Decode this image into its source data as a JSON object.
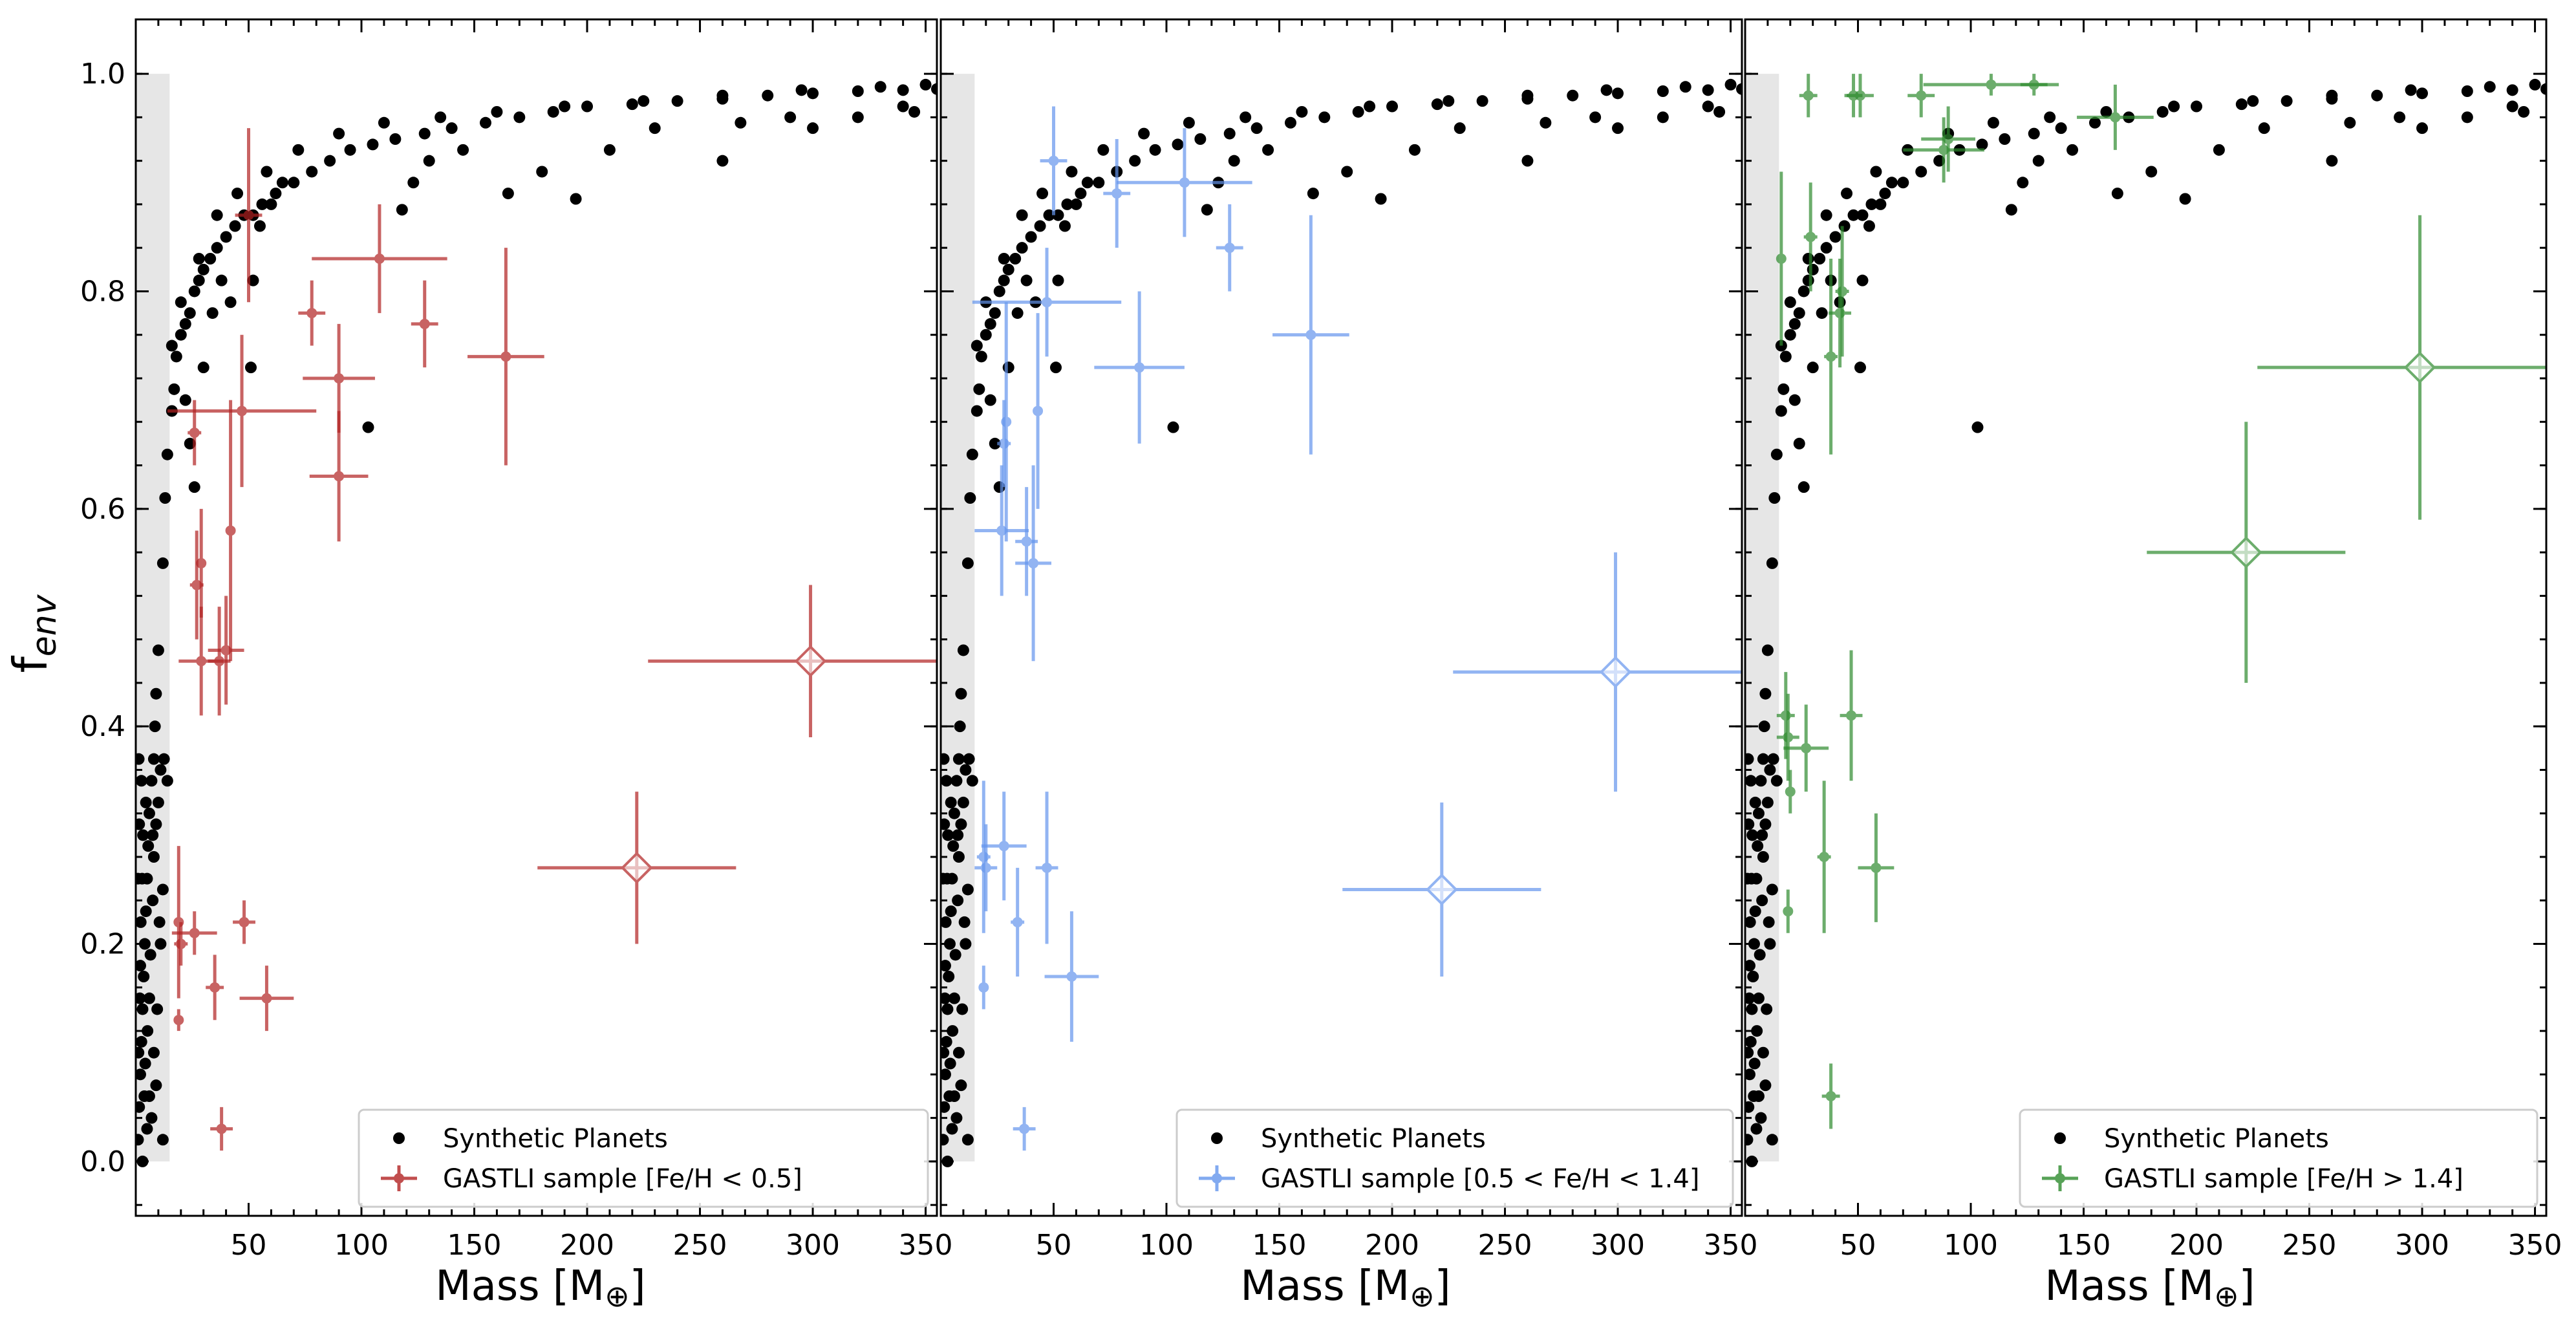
{
  "figure": {
    "ylabel_main": "f",
    "ylabel_sub": "env",
    "xlabel_main": "Mass [M",
    "xlabel_sub": "⊕",
    "xlabel_close": "]"
  },
  "chart_data": [
    {
      "type": "scatter",
      "panel": "left",
      "xlim": [
        0,
        355
      ],
      "ylim": [
        -0.05,
        1.05
      ],
      "xticks": [
        50,
        100,
        150,
        200,
        250,
        300,
        350
      ],
      "yticks": [
        0.0,
        0.2,
        0.4,
        0.6,
        0.8,
        1.0
      ],
      "xtick_labels": [
        "50",
        "100",
        "150",
        "200",
        "250",
        "300",
        "350"
      ],
      "ytick_labels": [
        "0.0",
        "0.2",
        "0.4",
        "0.6",
        "0.8",
        "1.0"
      ],
      "show_yticklabels": true,
      "shaded_band": [
        0,
        15
      ],
      "color": "#b22222",
      "legend": [
        "Synthetic Planets",
        "GASTLI sample [Fe/H < 0.5]"
      ],
      "legend_position": "lower-right",
      "points": [
        {
          "x": 50,
          "y": 0.87,
          "xerr": 6,
          "yerr": 0.08
        },
        {
          "x": 108,
          "y": 0.83,
          "xerr": 30,
          "yerr": 0.05
        },
        {
          "x": 78,
          "y": 0.78,
          "xerr": 6,
          "yerr": 0.03
        },
        {
          "x": 128,
          "y": 0.77,
          "xerr": 6,
          "yerr": 0.04
        },
        {
          "x": 164,
          "y": 0.74,
          "xerr": 17,
          "yerr": 0.1
        },
        {
          "x": 90,
          "y": 0.72,
          "xerr": 16,
          "yerr": 0.05
        },
        {
          "x": 47,
          "y": 0.69,
          "xerr": 33,
          "yerr": 0.07
        },
        {
          "x": 26,
          "y": 0.67,
          "xerr": 3,
          "yerr": 0.03
        },
        {
          "x": 90,
          "y": 0.63,
          "xerr": 13,
          "yerr": 0.06
        },
        {
          "x": 42,
          "y": 0.58,
          "xerr": 2,
          "yerr": 0.12
        },
        {
          "x": 29,
          "y": 0.55,
          "xerr": 2,
          "yerr": 0.05
        },
        {
          "x": 27,
          "y": 0.53,
          "xerr": 3,
          "yerr": 0.05
        },
        {
          "x": 40,
          "y": 0.47,
          "xerr": 8,
          "yerr": 0.05
        },
        {
          "x": 29,
          "y": 0.46,
          "xerr": 10,
          "yerr": 0.05
        },
        {
          "x": 37,
          "y": 0.46,
          "xerr": 5,
          "yerr": 0.05
        },
        {
          "x": 19,
          "y": 0.22,
          "xerr": 2,
          "yerr": 0.07
        },
        {
          "x": 48,
          "y": 0.22,
          "xerr": 5,
          "yerr": 0.02
        },
        {
          "x": 26,
          "y": 0.21,
          "xerr": 10,
          "yerr": 0.02
        },
        {
          "x": 20,
          "y": 0.2,
          "xerr": 3,
          "yerr": 0.02
        },
        {
          "x": 35,
          "y": 0.16,
          "xerr": 4,
          "yerr": 0.03
        },
        {
          "x": 58,
          "y": 0.15,
          "xerr": 12,
          "yerr": 0.03
        },
        {
          "x": 19,
          "y": 0.13,
          "xerr": 2,
          "yerr": 0.01
        },
        {
          "x": 38,
          "y": 0.03,
          "xerr": 5,
          "yerr": 0.02
        }
      ],
      "big_points": [
        {
          "x": 299,
          "y": 0.46,
          "xerr": 72,
          "yerr": 0.07
        },
        {
          "x": 222,
          "y": 0.27,
          "xerr": 44,
          "yerr": 0.07
        }
      ]
    },
    {
      "type": "scatter",
      "panel": "middle",
      "xlim": [
        0,
        355
      ],
      "ylim": [
        -0.05,
        1.05
      ],
      "xticks": [
        50,
        100,
        150,
        200,
        250,
        300,
        350
      ],
      "yticks": [
        0.0,
        0.2,
        0.4,
        0.6,
        0.8,
        1.0
      ],
      "xtick_labels": [
        "50",
        "100",
        "150",
        "200",
        "250",
        "300",
        "350"
      ],
      "show_yticklabels": false,
      "shaded_band": [
        0,
        15
      ],
      "color": "#6495ed",
      "legend": [
        "Synthetic Planets",
        "GASTLI sample [0.5 < Fe/H < 1.4]"
      ],
      "legend_position": "lower-right",
      "points": [
        {
          "x": 50,
          "y": 0.92,
          "xerr": 6,
          "yerr": 0.05
        },
        {
          "x": 108,
          "y": 0.9,
          "xerr": 30,
          "yerr": 0.05
        },
        {
          "x": 78,
          "y": 0.89,
          "xerr": 6,
          "yerr": 0.05
        },
        {
          "x": 128,
          "y": 0.84,
          "xerr": 6,
          "yerr": 0.04
        },
        {
          "x": 47,
          "y": 0.79,
          "xerr": 33,
          "yerr": 0.05
        },
        {
          "x": 164,
          "y": 0.76,
          "xerr": 17,
          "yerr": 0.11
        },
        {
          "x": 88,
          "y": 0.73,
          "xerr": 20,
          "yerr": 0.07
        },
        {
          "x": 43,
          "y": 0.69,
          "xerr": 2,
          "yerr": 0.09
        },
        {
          "x": 29,
          "y": 0.68,
          "xerr": 2,
          "yerr": 0.11
        },
        {
          "x": 28,
          "y": 0.66,
          "xerr": 3,
          "yerr": 0.04
        },
        {
          "x": 27,
          "y": 0.58,
          "xerr": 12,
          "yerr": 0.06
        },
        {
          "x": 38,
          "y": 0.57,
          "xerr": 5,
          "yerr": 0.05
        },
        {
          "x": 41,
          "y": 0.55,
          "xerr": 8,
          "yerr": 0.09
        },
        {
          "x": 28,
          "y": 0.29,
          "xerr": 10,
          "yerr": 0.05
        },
        {
          "x": 19,
          "y": 0.28,
          "xerr": 3,
          "yerr": 0.07
        },
        {
          "x": 20,
          "y": 0.27,
          "xerr": 5,
          "yerr": 0.04
        },
        {
          "x": 47,
          "y": 0.27,
          "xerr": 5,
          "yerr": 0.07
        },
        {
          "x": 34,
          "y": 0.22,
          "xerr": 3,
          "yerr": 0.05
        },
        {
          "x": 58,
          "y": 0.17,
          "xerr": 12,
          "yerr": 0.06
        },
        {
          "x": 19,
          "y": 0.16,
          "xerr": 2,
          "yerr": 0.02
        },
        {
          "x": 37,
          "y": 0.03,
          "xerr": 5,
          "yerr": 0.02
        }
      ],
      "big_points": [
        {
          "x": 299,
          "y": 0.45,
          "xerr": 72,
          "yerr": 0.11
        },
        {
          "x": 222,
          "y": 0.25,
          "xerr": 44,
          "yerr": 0.08
        }
      ]
    },
    {
      "type": "scatter",
      "panel": "right",
      "xlim": [
        0,
        355
      ],
      "ylim": [
        -0.05,
        1.05
      ],
      "xticks": [
        50,
        100,
        150,
        200,
        250,
        300,
        350
      ],
      "yticks": [
        0.0,
        0.2,
        0.4,
        0.6,
        0.8,
        1.0
      ],
      "xtick_labels": [
        "50",
        "100",
        "150",
        "200",
        "250",
        "300",
        "350"
      ],
      "show_yticklabels": false,
      "shaded_band": [
        0,
        15
      ],
      "color": "#2e8b2e",
      "legend": [
        "Synthetic Planets",
        "GASTLI sample [Fe/H > 1.4]"
      ],
      "legend_position": "lower-right",
      "points": [
        {
          "x": 109,
          "y": 0.99,
          "xerr": 30,
          "yerr": 0.01
        },
        {
          "x": 128,
          "y": 0.99,
          "xerr": 6,
          "yerr": 0.01
        },
        {
          "x": 28,
          "y": 0.98,
          "xerr": 4,
          "yerr": 0.02
        },
        {
          "x": 48,
          "y": 0.98,
          "xerr": 4,
          "yerr": 0.02
        },
        {
          "x": 51,
          "y": 0.98,
          "xerr": 6,
          "yerr": 0.02
        },
        {
          "x": 78,
          "y": 0.98,
          "xerr": 6,
          "yerr": 0.02
        },
        {
          "x": 164,
          "y": 0.96,
          "xerr": 17,
          "yerr": 0.03
        },
        {
          "x": 90,
          "y": 0.94,
          "xerr": 12,
          "yerr": 0.03
        },
        {
          "x": 88,
          "y": 0.93,
          "xerr": 18,
          "yerr": 0.03
        },
        {
          "x": 29,
          "y": 0.85,
          "xerr": 3,
          "yerr": 0.05
        },
        {
          "x": 16,
          "y": 0.83,
          "xerr": 2,
          "yerr": 0.08
        },
        {
          "x": 43,
          "y": 0.8,
          "xerr": 3,
          "yerr": 0.06
        },
        {
          "x": 42,
          "y": 0.78,
          "xerr": 5,
          "yerr": 0.05
        },
        {
          "x": 38,
          "y": 0.74,
          "xerr": 3,
          "yerr": 0.09
        },
        {
          "x": 47,
          "y": 0.41,
          "xerr": 5,
          "yerr": 0.06
        },
        {
          "x": 18,
          "y": 0.41,
          "xerr": 4,
          "yerr": 0.04
        },
        {
          "x": 19,
          "y": 0.39,
          "xerr": 5,
          "yerr": 0.04
        },
        {
          "x": 27,
          "y": 0.38,
          "xerr": 10,
          "yerr": 0.04
        },
        {
          "x": 20,
          "y": 0.34,
          "xerr": 2,
          "yerr": 0.02
        },
        {
          "x": 35,
          "y": 0.28,
          "xerr": 3,
          "yerr": 0.07
        },
        {
          "x": 58,
          "y": 0.27,
          "xerr": 8,
          "yerr": 0.05
        },
        {
          "x": 19,
          "y": 0.23,
          "xerr": 2,
          "yerr": 0.02
        },
        {
          "x": 38,
          "y": 0.06,
          "xerr": 4,
          "yerr": 0.03
        }
      ],
      "big_points": [
        {
          "x": 299,
          "y": 0.73,
          "xerr": 72,
          "yerr": 0.14
        },
        {
          "x": 222,
          "y": 0.56,
          "xerr": 44,
          "yerr": 0.12
        }
      ]
    }
  ],
  "synthetic_planets": {
    "color": "#000000",
    "curve": [
      [
        10,
        0.47
      ],
      [
        12,
        0.55
      ],
      [
        13,
        0.61
      ],
      [
        14,
        0.65
      ],
      [
        16,
        0.69
      ],
      [
        17,
        0.71
      ],
      [
        18,
        0.74
      ],
      [
        20,
        0.76
      ],
      [
        22,
        0.77
      ],
      [
        24,
        0.78
      ],
      [
        26,
        0.8
      ],
      [
        28,
        0.81
      ],
      [
        30,
        0.82
      ],
      [
        33,
        0.83
      ],
      [
        36,
        0.84
      ],
      [
        40,
        0.85
      ],
      [
        44,
        0.86
      ],
      [
        48,
        0.87
      ],
      [
        52,
        0.87
      ],
      [
        56,
        0.88
      ],
      [
        62,
        0.89
      ],
      [
        70,
        0.9
      ],
      [
        78,
        0.91
      ],
      [
        86,
        0.92
      ],
      [
        95,
        0.93
      ],
      [
        105,
        0.935
      ],
      [
        115,
        0.94
      ],
      [
        128,
        0.945
      ],
      [
        140,
        0.95
      ],
      [
        155,
        0.955
      ],
      [
        170,
        0.96
      ],
      [
        185,
        0.965
      ],
      [
        200,
        0.97
      ],
      [
        220,
        0.972
      ],
      [
        240,
        0.975
      ],
      [
        260,
        0.977
      ],
      [
        280,
        0.98
      ],
      [
        300,
        0.982
      ],
      [
        320,
        0.984
      ],
      [
        340,
        0.985
      ],
      [
        355,
        0.986
      ]
    ],
    "above": [
      [
        20,
        0.79
      ],
      [
        28,
        0.83
      ],
      [
        36,
        0.87
      ],
      [
        45,
        0.89
      ],
      [
        58,
        0.91
      ],
      [
        72,
        0.93
      ],
      [
        90,
        0.945
      ],
      [
        110,
        0.955
      ],
      [
        135,
        0.96
      ],
      [
        160,
        0.965
      ],
      [
        190,
        0.97
      ],
      [
        225,
        0.975
      ],
      [
        260,
        0.98
      ],
      [
        295,
        0.985
      ],
      [
        330,
        0.988
      ],
      [
        350,
        0.99
      ]
    ],
    "scattered": [
      [
        16,
        0.75
      ],
      [
        22,
        0.7
      ],
      [
        24,
        0.66
      ],
      [
        26,
        0.62
      ],
      [
        30,
        0.73
      ],
      [
        34,
        0.78
      ],
      [
        38,
        0.81
      ],
      [
        42,
        0.79
      ],
      [
        52,
        0.81
      ],
      [
        51,
        0.73
      ],
      [
        55,
        0.86
      ],
      [
        60,
        0.88
      ],
      [
        65,
        0.9
      ],
      [
        103,
        0.675
      ],
      [
        118,
        0.875
      ],
      [
        123,
        0.9
      ],
      [
        130,
        0.92
      ],
      [
        145,
        0.93
      ],
      [
        165,
        0.89
      ],
      [
        180,
        0.91
      ],
      [
        195,
        0.885
      ],
      [
        210,
        0.93
      ],
      [
        230,
        0.95
      ],
      [
        260,
        0.92
      ],
      [
        268,
        0.955
      ],
      [
        290,
        0.96
      ],
      [
        300,
        0.95
      ],
      [
        320,
        0.96
      ],
      [
        340,
        0.97
      ],
      [
        345,
        0.965
      ]
    ],
    "lowcluster": [
      [
        1.0,
        0.02
      ],
      [
        1.5,
        0.05
      ],
      [
        2.0,
        0.08
      ],
      [
        2.5,
        0.11
      ],
      [
        3.0,
        0.14
      ],
      [
        3.5,
        0.17
      ],
      [
        4.0,
        0.2
      ],
      [
        4.5,
        0.23
      ],
      [
        5.0,
        0.26
      ],
      [
        5.5,
        0.29
      ],
      [
        6.0,
        0.32
      ],
      [
        7.0,
        0.35
      ],
      [
        8.0,
        0.37
      ],
      [
        8.5,
        0.4
      ],
      [
        9.0,
        0.43
      ],
      [
        1.2,
        0.1
      ],
      [
        1.8,
        0.15
      ],
      [
        2.2,
        0.22
      ],
      [
        2.8,
        0.26
      ],
      [
        3.2,
        0.3
      ],
      [
        2.0,
        0.18
      ],
      [
        3.8,
        0.06
      ],
      [
        4.2,
        0.09
      ],
      [
        5.2,
        0.12
      ],
      [
        6.0,
        0.15
      ],
      [
        6.5,
        0.19
      ],
      [
        7.5,
        0.24
      ],
      [
        8.0,
        0.28
      ],
      [
        9.0,
        0.31
      ],
      [
        10.0,
        0.33
      ],
      [
        6.0,
        0.06
      ],
      [
        8.0,
        0.1
      ],
      [
        9.5,
        0.14
      ],
      [
        11.0,
        0.2
      ],
      [
        12.0,
        0.25
      ],
      [
        10.5,
        0.22
      ],
      [
        3.0,
        0.0
      ],
      [
        5.0,
        0.03
      ],
      [
        7.0,
        0.04
      ],
      [
        9.0,
        0.07
      ],
      [
        11.0,
        0.36
      ],
      [
        12.5,
        0.37
      ],
      [
        14.0,
        0.35
      ],
      [
        12.0,
        0.02
      ],
      [
        7.5,
        0.3
      ],
      [
        4.5,
        0.33
      ],
      [
        2.5,
        0.35
      ],
      [
        1.5,
        0.31
      ],
      [
        1.0,
        0.26
      ],
      [
        1.3,
        0.37
      ]
    ]
  }
}
